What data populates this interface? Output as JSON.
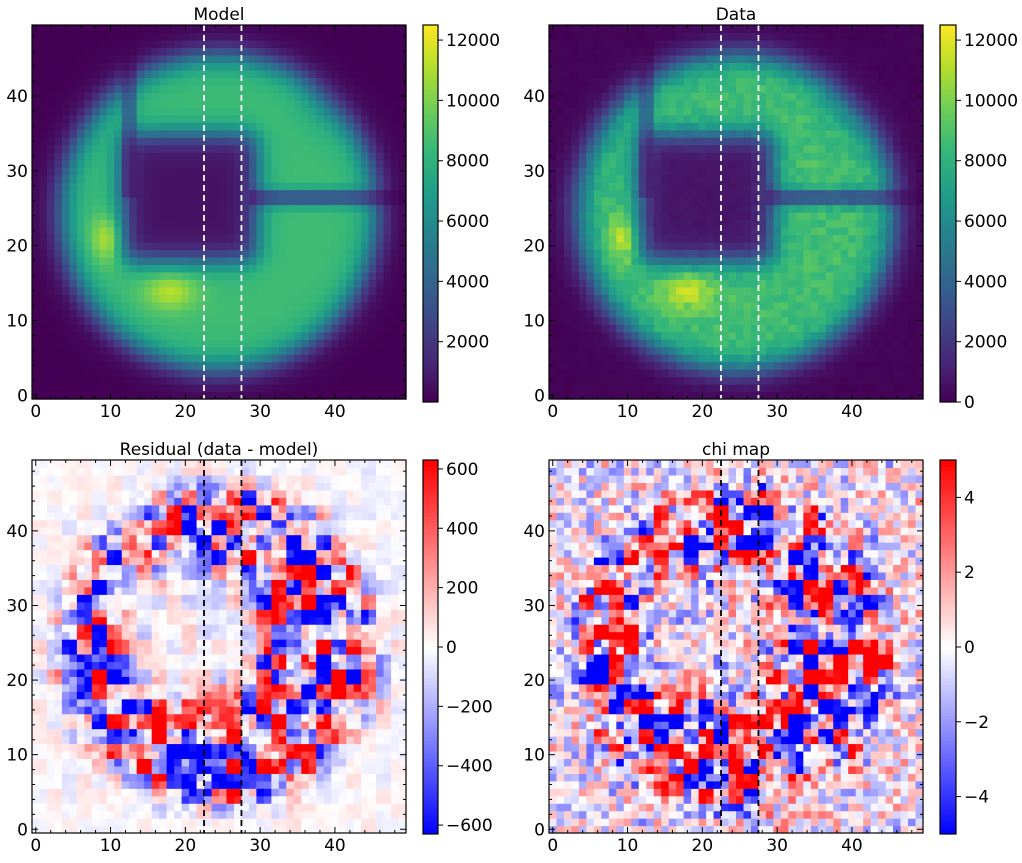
{
  "chart_data": [
    {
      "type": "heatmap",
      "title": "Model",
      "colormap": "viridis",
      "xlim": [
        0,
        49
      ],
      "ylim": [
        0,
        49
      ],
      "xticks": [
        0,
        10,
        20,
        30,
        40
      ],
      "yticks": [
        0,
        10,
        20,
        30,
        40
      ],
      "clim": [
        0,
        12500
      ],
      "colorbar_ticks": [
        "2000",
        "4000",
        "6000",
        "8000",
        "10000",
        "12000"
      ],
      "colorbar_tick_values": [
        2000,
        4000,
        6000,
        8000,
        10000,
        12000
      ],
      "vlines": [
        22.5,
        27.5
      ],
      "vline_color": "#ffffff",
      "description": "Annular pupil: dark central square obscuration, bright ring, horizontal spider at y≈26, vertical spider at x≈10 (upper-left)",
      "peak_value": 12300
    },
    {
      "type": "heatmap",
      "title": "Data",
      "colormap": "viridis",
      "xlim": [
        0,
        49
      ],
      "ylim": [
        0,
        49
      ],
      "xticks": [
        0,
        10,
        20,
        30,
        40
      ],
      "yticks": [
        0,
        10,
        20,
        30,
        40
      ],
      "clim": [
        0,
        12500
      ],
      "colorbar_ticks": [
        "0",
        "2000",
        "4000",
        "6000",
        "8000",
        "10000",
        "12000"
      ],
      "colorbar_tick_values": [
        0,
        2000,
        4000,
        6000,
        8000,
        10000,
        12000
      ],
      "vlines": [
        22.5,
        27.5
      ],
      "vline_color": "#ffffff",
      "peak_value": 12300
    },
    {
      "type": "heatmap",
      "title": "Residual (data - model)",
      "colormap": "bwr",
      "xlim": [
        0,
        49
      ],
      "ylim": [
        0,
        49
      ],
      "xticks": [
        0,
        10,
        20,
        30,
        40
      ],
      "yticks": [
        0,
        10,
        20,
        30,
        40
      ],
      "clim": [
        -630,
        630
      ],
      "colorbar_ticks": [
        "−600",
        "−400",
        "−200",
        "0",
        "200",
        "400",
        "600"
      ],
      "colorbar_tick_values": [
        -600,
        -400,
        -200,
        0,
        200,
        400,
        600
      ],
      "vlines": [
        22.5,
        27.5
      ],
      "vline_color": "#000000"
    },
    {
      "type": "heatmap",
      "title": "chi map",
      "colormap": "bwr",
      "xlim": [
        0,
        49
      ],
      "ylim": [
        0,
        49
      ],
      "xticks": [
        0,
        10,
        20,
        30,
        40
      ],
      "yticks": [
        0,
        10,
        20,
        30,
        40
      ],
      "clim": [
        -5,
        5
      ],
      "colorbar_ticks": [
        "−4",
        "−2",
        "0",
        "2",
        "4"
      ],
      "colorbar_tick_values": [
        -4,
        -2,
        0,
        2,
        4
      ],
      "vlines": [
        22.5,
        27.5
      ],
      "vline_color": "#000000"
    }
  ]
}
